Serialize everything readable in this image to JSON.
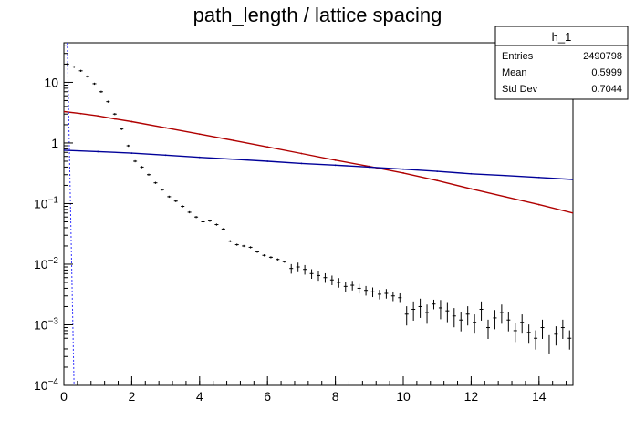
{
  "chart_data": {
    "type": "line",
    "title": "path_length / lattice spacing",
    "xlabel": "",
    "ylabel": "",
    "xlim": [
      0,
      15
    ],
    "ylim": [
      0.0001,
      45
    ],
    "yscale": "log",
    "grid": false,
    "x_ticks": [
      0,
      2,
      4,
      6,
      8,
      10,
      12,
      14
    ],
    "x_tick_labels": [
      "0",
      "2",
      "4",
      "6",
      "8",
      "10",
      "12",
      "14"
    ],
    "y_ticks": [
      {
        "value": 0.0001,
        "base": "10",
        "exp": "−4"
      },
      {
        "value": 0.001,
        "base": "10",
        "exp": "−3"
      },
      {
        "value": 0.01,
        "base": "10",
        "exp": "−2"
      },
      {
        "value": 0.1,
        "base": "10",
        "exp": "−1"
      },
      {
        "value": 1,
        "base": "1",
        "exp": ""
      },
      {
        "value": 10,
        "base": "10",
        "exp": ""
      }
    ],
    "stats": {
      "name": "h_1",
      "rows": [
        {
          "label": "Entries",
          "value": "2490798"
        },
        {
          "label": "Mean",
          "value": "0.5999"
        },
        {
          "label": "Std Dev",
          "value": "0.7044"
        }
      ]
    },
    "series": [
      {
        "color": "#b00000",
        "style": "line",
        "x": [
          0,
          0.5,
          1,
          1.5,
          2,
          3,
          4,
          5,
          6,
          7,
          8,
          9,
          10,
          11,
          12,
          13,
          14,
          15
        ],
        "y": [
          3.3,
          3.05,
          2.8,
          2.5,
          2.25,
          1.78,
          1.4,
          1.1,
          0.86,
          0.67,
          0.52,
          0.41,
          0.32,
          0.24,
          0.175,
          0.13,
          0.096,
          0.07
        ]
      },
      {
        "color": "#000099",
        "style": "line",
        "x": [
          0,
          1,
          2,
          3,
          4,
          5,
          6,
          7,
          8,
          9,
          10,
          11,
          12,
          13,
          14,
          15
        ],
        "y": [
          0.76,
          0.72,
          0.68,
          0.63,
          0.58,
          0.54,
          0.5,
          0.46,
          0.43,
          0.4,
          0.37,
          0.34,
          0.31,
          0.29,
          0.27,
          0.25
        ]
      },
      {
        "color": "#000000",
        "style": "points",
        "x": [
          0.1,
          0.3,
          0.5,
          0.7,
          0.9,
          1.1,
          1.3,
          1.5,
          1.7,
          1.9,
          2.1,
          2.3,
          2.5,
          2.7,
          2.9,
          3.1,
          3.3,
          3.5,
          3.7,
          3.9,
          4.1,
          4.3,
          4.5,
          4.7,
          4.9,
          5.1,
          5.3,
          5.5,
          5.7,
          5.9,
          6.1,
          6.3,
          6.5,
          6.7,
          6.9,
          7.1,
          7.3,
          7.5,
          7.7,
          7.9,
          8.1,
          8.3,
          8.5,
          8.7,
          8.9,
          9.1,
          9.3,
          9.5,
          9.7,
          9.9,
          10.1,
          10.3,
          10.5,
          10.7,
          10.9,
          11.1,
          11.3,
          11.5,
          11.7,
          11.9,
          12.1,
          12.3,
          12.5,
          12.7,
          12.9,
          13.1,
          13.3,
          13.5,
          13.7,
          13.9,
          14.1,
          14.3,
          14.5,
          14.7,
          14.9
        ],
        "y": [
          20,
          18,
          15.5,
          12.5,
          9.5,
          7,
          4.8,
          3,
          1.7,
          0.9,
          0.5,
          0.4,
          0.3,
          0.22,
          0.17,
          0.13,
          0.11,
          0.09,
          0.072,
          0.06,
          0.05,
          0.052,
          0.045,
          0.038,
          0.024,
          0.021,
          0.02,
          0.019,
          0.016,
          0.014,
          0.013,
          0.012,
          0.011,
          0.0085,
          0.009,
          0.0082,
          0.007,
          0.0065,
          0.006,
          0.0055,
          0.005,
          0.0043,
          0.0045,
          0.004,
          0.0037,
          0.0035,
          0.0032,
          0.0033,
          0.003,
          0.0028,
          0.0015,
          0.0018,
          0.002,
          0.0016,
          0.0022,
          0.0019,
          0.0017,
          0.0014,
          0.0012,
          0.0015,
          0.0011,
          0.0018,
          0.0009,
          0.0013,
          0.0016,
          0.0012,
          0.0008,
          0.0011,
          0.00075,
          0.0006,
          0.0009,
          0.0005,
          0.0007,
          0.0009,
          0.0006
        ]
      },
      {
        "color": "#3333ff",
        "style": "spike",
        "x": [
          0.1,
          0.3
        ],
        "y": [
          45,
          0.0001
        ]
      }
    ]
  }
}
